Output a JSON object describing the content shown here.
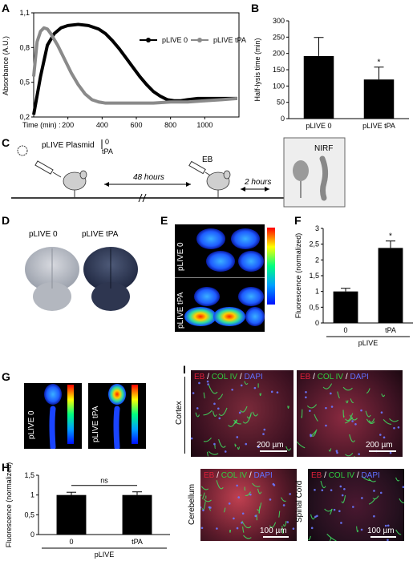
{
  "panels": {
    "A": "A",
    "B": "B",
    "C": "C",
    "D": "D",
    "E": "E",
    "F": "F",
    "G": "G",
    "H": "H",
    "I": "I"
  },
  "panel_a": {
    "ylabel": "Absorbance (A.U.)",
    "xlabel": "Time (min) :",
    "legend": [
      "pLIVE 0",
      "pLIVE tPA"
    ]
  },
  "panel_c": {
    "plasmid_label": "pLIVE Plasmid",
    "plasmid_opts": [
      "0",
      "tPA"
    ],
    "interval_1": "48 hours",
    "eb_label": "EB",
    "interval_2": "2 hours",
    "nirf_label": "NIRF"
  },
  "panel_d": {
    "labels": [
      "pLIVE 0",
      "pLIVE tPA"
    ]
  },
  "panel_e": {
    "labels": [
      "pLIVE 0",
      "pLIVE tPA"
    ]
  },
  "panel_g": {
    "labels": [
      "pLIVE 0",
      "pLIVE tPA"
    ]
  },
  "panel_i": {
    "stain_eb": "EB",
    "stain_col": "COL IV",
    "stain_dapi": "DAPI",
    "sep": "/",
    "region_cortex": "Cortex",
    "region_cerebellum": "Cerebellum",
    "region_spinal": "Spinal Cord",
    "scale_200": "200 µm",
    "scale_100": "100 µm"
  },
  "colors": {
    "plive0": "#000000",
    "plivetpa": "#8a8a8a",
    "eb": "#e0203a",
    "col": "#30d040",
    "dapi": "#5560ff"
  },
  "chart_data": [
    {
      "panel": "A",
      "type": "line",
      "xlabel": "Time (min) :",
      "ylabel": "Absorbance (A.U.)",
      "xlim": [
        0,
        1200
      ],
      "ylim": [
        0.2,
        1.1
      ],
      "xticks": [
        200,
        400,
        600,
        800,
        1000
      ],
      "yticks": [
        {
          "v": 0.2,
          "label": "0,2"
        },
        {
          "v": 0.5,
          "label": "0,5"
        },
        {
          "v": 0.8,
          "label": "0,8"
        },
        {
          "v": 1.1,
          "label": "1,1"
        }
      ],
      "series": [
        {
          "name": "pLIVE 0",
          "x": [
            0,
            40,
            80,
            120,
            160,
            200,
            260,
            320,
            380,
            420,
            460,
            500,
            540,
            580,
            620,
            660,
            700,
            740,
            780,
            820,
            860,
            900,
            960,
            1020,
            1080,
            1140,
            1190
          ],
          "y": [
            0.22,
            0.55,
            0.82,
            0.92,
            0.97,
            0.99,
            1.0,
            0.99,
            0.96,
            0.92,
            0.86,
            0.79,
            0.71,
            0.63,
            0.55,
            0.48,
            0.42,
            0.38,
            0.35,
            0.34,
            0.34,
            0.35,
            0.36,
            0.36,
            0.36,
            0.36,
            0.36
          ]
        },
        {
          "name": "pLIVE tPA",
          "x": [
            0,
            20,
            40,
            60,
            80,
            100,
            140,
            180,
            220,
            260,
            300,
            340,
            380,
            420,
            460,
            520,
            600,
            700,
            800,
            900,
            1000,
            1100,
            1190
          ],
          "y": [
            0.55,
            0.85,
            0.94,
            0.97,
            0.96,
            0.92,
            0.82,
            0.7,
            0.58,
            0.48,
            0.4,
            0.35,
            0.33,
            0.32,
            0.32,
            0.32,
            0.32,
            0.32,
            0.33,
            0.33,
            0.34,
            0.35,
            0.36
          ]
        }
      ]
    },
    {
      "panel": "B",
      "type": "bar",
      "ylabel": "Half-lysis time (min)",
      "categories": [
        "pLIVE 0",
        "pLIVE tPA"
      ],
      "values": [
        192,
        120
      ],
      "errors": [
        57,
        38
      ],
      "ylim": [
        0,
        300
      ],
      "yticks": [
        0,
        50,
        100,
        150,
        200,
        250,
        300
      ],
      "significance": [
        "",
        "*"
      ]
    },
    {
      "panel": "F",
      "type": "bar",
      "ylabel": "Fluorescence (normalized)",
      "categories": [
        "0",
        "tPA"
      ],
      "group_label": "pLIVE",
      "values": [
        1.0,
        2.38
      ],
      "errors": [
        0.1,
        0.22
      ],
      "ylim": [
        0,
        3
      ],
      "yticks": [
        {
          "v": 0,
          "label": "0"
        },
        {
          "v": 0.5,
          "label": "0,5"
        },
        {
          "v": 1,
          "label": "1"
        },
        {
          "v": 1.5,
          "label": "1,5"
        },
        {
          "v": 2,
          "label": "2"
        },
        {
          "v": 2.5,
          "label": "2,5"
        },
        {
          "v": 3,
          "label": "3"
        }
      ],
      "significance": [
        "",
        "*"
      ]
    },
    {
      "panel": "H",
      "type": "bar",
      "ylabel": "Fluorescence (normalized)",
      "categories": [
        "0",
        "tPA"
      ],
      "group_label": "pLIVE",
      "values": [
        1.0,
        1.0
      ],
      "errors": [
        0.07,
        0.08
      ],
      "ylim": [
        0,
        1.5
      ],
      "yticks": [
        {
          "v": 0,
          "label": "0"
        },
        {
          "v": 0.5,
          "label": "0,5"
        },
        {
          "v": 1,
          "label": "1"
        },
        {
          "v": 1.5,
          "label": "1,5"
        }
      ],
      "significance_bracket": "ns"
    }
  ]
}
